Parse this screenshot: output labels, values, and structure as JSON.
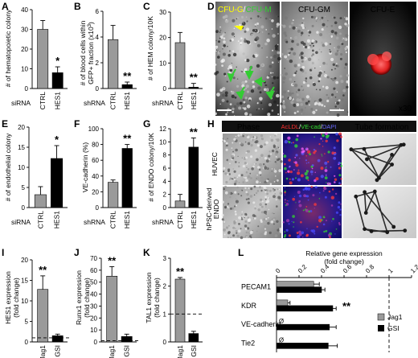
{
  "panels": {
    "A": {
      "letter": "A",
      "ylabel": "# of hematopoietic colony",
      "xtitle": "siRNA",
      "ticks": [
        "0",
        "10",
        "20",
        "30",
        "40"
      ],
      "cats": [
        "CTRL",
        "HES1"
      ],
      "sig": "*"
    },
    "B": {
      "letter": "B",
      "ylabel1": "# of blood cells within",
      "ylabel2": "GFP+ fraction (x10",
      "ylabel_sup": "3",
      "ylabel_close": ")",
      "xtitle": "shRNA",
      "ticks": [
        "0",
        "2",
        "4",
        "6"
      ],
      "cats": [
        "CTRL",
        "HES1"
      ],
      "sig": "**"
    },
    "C": {
      "letter": "C",
      "ylabel": "# of HEM colony/10K",
      "xtitle": "shRNA",
      "ticks": [
        "0",
        "10",
        "20",
        "30"
      ],
      "cats": [
        "CTRL",
        "HES1"
      ],
      "sig": "**"
    },
    "D": {
      "letter": "D",
      "label_cfug": "CFU-G",
      "label_slash": "/",
      "label_cfum": "CFU-M",
      "label_gm": "CFU-GM",
      "label_e": "CFU-E",
      "mag": "x30"
    },
    "E": {
      "letter": "E",
      "ylabel": "# of endothelial colony",
      "xtitle": "siRNA",
      "ticks": [
        "0",
        "5",
        "10",
        "15",
        "20"
      ],
      "cats": [
        "CTRL",
        "HES1"
      ],
      "sig": "*"
    },
    "F": {
      "letter": "F",
      "ylabel": "VE-cadherin (%)",
      "xtitle": "shRNA",
      "ticks": [
        "0",
        "20",
        "40",
        "60",
        "80",
        "100"
      ],
      "cats": [
        "CTRL",
        "HES1"
      ],
      "sig": "**"
    },
    "G": {
      "letter": "G",
      "ylabel": "# of ENDO colony/10K",
      "xtitle": "shRNA",
      "ticks": [
        "0",
        "2",
        "4",
        "6",
        "8",
        "10",
        "12"
      ],
      "cats": [
        "CTRL",
        "HES1"
      ],
      "sig": "**"
    },
    "H": {
      "letter": "H",
      "head_phase": "Phase",
      "head_acldl": "AcLDL",
      "head_slash1": "/",
      "head_vecad": "VE-cad",
      "head_slash2": "/",
      "head_dapi": "DAPI",
      "head_tube": "Tube formation",
      "row1": "HUVEC",
      "row2a": "hPSC-derived",
      "row2b": "ENDO"
    },
    "I": {
      "letter": "I",
      "ylabel1": "HES1 expression",
      "ylabel2": "(fold change)",
      "ticks": [
        "0",
        "5",
        "10",
        "15",
        "20"
      ],
      "cats": [
        "Jag1",
        "GSI"
      ],
      "sig": "**"
    },
    "J": {
      "letter": "J",
      "ylabel1": "Runx1 expression",
      "ylabel2": "(fold change)",
      "ticks": [
        "0",
        "10",
        "20",
        "30",
        "40",
        "50",
        "60",
        "70"
      ],
      "cats": [
        "Jag1",
        "GSI"
      ],
      "sig": "**"
    },
    "K": {
      "letter": "K",
      "ylabel1": "TAL1 expression",
      "ylabel2": "(fold change)",
      "ticks": [
        "0",
        "1",
        "2",
        "3"
      ],
      "cats": [
        "Jag1",
        "GSI"
      ],
      "sig": "**"
    },
    "L": {
      "letter": "L",
      "title1": "Relative gene expression",
      "title2": "(fold change)",
      "ticks": [
        "0",
        "0.2",
        "0.4",
        "0.6",
        "0.8",
        "1",
        "1.2"
      ],
      "genes": [
        "PECAM1",
        "KDR",
        "VE-cadherin",
        "Tie2"
      ],
      "legend": [
        "Jag1",
        "GSI"
      ],
      "sig": "**",
      "zero_mark": "Ø"
    }
  },
  "chart_data": [
    {
      "panel": "A",
      "type": "bar",
      "categories": [
        "CTRL",
        "HES1"
      ],
      "values": [
        30,
        8
      ],
      "errors": [
        4.5,
        3
      ],
      "ylabel": "# of hematopoietic colony",
      "xlabel": "siRNA",
      "ylim": [
        0,
        40
      ]
    },
    {
      "panel": "B",
      "type": "bar",
      "categories": [
        "CTRL",
        "HES1"
      ],
      "values": [
        3.8,
        0.3
      ],
      "errors": [
        1.1,
        0.2
      ],
      "ylabel": "# of blood cells within GFP+ fraction (x10^3)",
      "xlabel": "shRNA",
      "ylim": [
        0,
        6
      ]
    },
    {
      "panel": "C",
      "type": "bar",
      "categories": [
        "CTRL",
        "HES1"
      ],
      "values": [
        18,
        0.5
      ],
      "errors": [
        4,
        1.5
      ],
      "ylabel": "# of HEM colony/10K",
      "xlabel": "shRNA",
      "ylim": [
        0,
        30
      ]
    },
    {
      "panel": "E",
      "type": "bar",
      "categories": [
        "CTRL",
        "HES1"
      ],
      "values": [
        3.2,
        12.2
      ],
      "errors": [
        2,
        3.2
      ],
      "ylabel": "# of endothelial colony",
      "xlabel": "siRNA",
      "ylim": [
        0,
        20
      ]
    },
    {
      "panel": "F",
      "type": "bar",
      "categories": [
        "CTRL",
        "HES1"
      ],
      "values": [
        32,
        75
      ],
      "errors": [
        3,
        5
      ],
      "ylabel": "VE-cadherin (%)",
      "xlabel": "shRNA",
      "ylim": [
        0,
        100
      ]
    },
    {
      "panel": "G",
      "type": "bar",
      "categories": [
        "CTRL",
        "HES1"
      ],
      "values": [
        1,
        9.2
      ],
      "errors": [
        1,
        1.4
      ],
      "ylabel": "# of ENDO colony/10K",
      "xlabel": "shRNA",
      "ylim": [
        0,
        12
      ]
    },
    {
      "panel": "I",
      "type": "bar",
      "categories": [
        "Jag1",
        "GSI"
      ],
      "values": [
        12.8,
        1.5
      ],
      "errors": [
        3.3,
        0.4
      ],
      "ylabel": "HES1 expression (fold change)",
      "ylim": [
        0,
        20
      ],
      "reference_line": 1
    },
    {
      "panel": "J",
      "type": "bar",
      "categories": [
        "Jag1",
        "GSI"
      ],
      "values": [
        55,
        4.5
      ],
      "errors": [
        8,
        2
      ],
      "ylabel": "Runx1 expression (fold change)",
      "ylim": [
        0,
        70
      ],
      "reference_line": 1
    },
    {
      "panel": "K",
      "type": "bar",
      "categories": [
        "Jag1",
        "GSI"
      ],
      "values": [
        2.25,
        0.3
      ],
      "errors": [
        0.06,
        0.08
      ],
      "ylabel": "TAL1 expression (fold change)",
      "ylim": [
        0,
        3
      ],
      "reference_line": 1
    },
    {
      "panel": "L",
      "type": "bar",
      "orientation": "horizontal",
      "categories": [
        "PECAM1",
        "KDR",
        "VE-cadherin",
        "Tie2"
      ],
      "series": [
        {
          "name": "Jag1",
          "values": [
            0.33,
            0.1,
            0,
            0
          ],
          "errors": [
            0.05,
            0.02,
            0,
            0
          ]
        },
        {
          "name": "GSI",
          "values": [
            0.4,
            0.5,
            0.47,
            0.46
          ],
          "errors": [
            0.03,
            0.03,
            0.06,
            0.08
          ]
        }
      ],
      "xlim": [
        0,
        1.2
      ],
      "reference_line": 1
    }
  ],
  "colors": {
    "gray": "#9a9a9a",
    "black": "#000000",
    "green": "#33cc33",
    "yellow": "#ffff00",
    "red": "#ff2020",
    "blue": "#3a3aff",
    "cfu_e_label": "#e02020",
    "tube_label": "#e02020"
  }
}
